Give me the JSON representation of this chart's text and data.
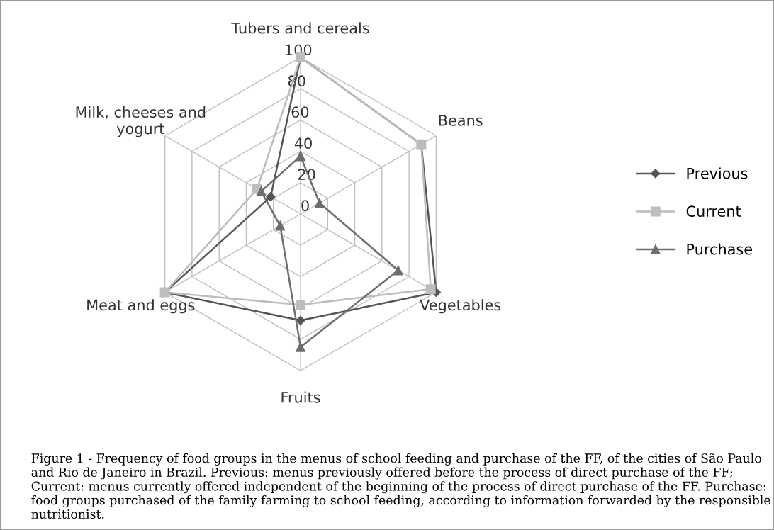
{
  "chart_data": {
    "type": "radar",
    "categories": [
      "Tubers and cereals",
      "Beans",
      "Vegetables",
      "Fruits",
      "Meat and eggs",
      "Milk, cheeses and\nyogurt"
    ],
    "series": [
      {
        "name": "Previous",
        "color": "#555555",
        "marker": "diamond",
        "values": [
          100,
          89,
          100,
          68,
          100,
          22
        ]
      },
      {
        "name": "Current",
        "color": "#bdbdbd",
        "marker": "square",
        "values": [
          100,
          89,
          96,
          58,
          100,
          32
        ]
      },
      {
        "name": "Purchase",
        "color": "#6e6e6e",
        "marker": "triangle",
        "values": [
          37,
          14,
          72,
          85,
          15,
          29
        ]
      }
    ],
    "ylim": [
      0,
      100
    ],
    "yticks": [
      0,
      20,
      40,
      60,
      80,
      100
    ],
    "grid": true,
    "legend": "right",
    "annotations": [
      "Figure 1 - Frequency of food groups in the menus of school feeding and purchase of the FF, of the cities of São Paulo and Rio de Janeiro in Brazil. Previous: menus previously offered before the process of direct purchase of the FF; Current: menus currently offered independent of the beginning of the process of direct purchase of the FF. Purchase: food groups purchased of the family farming to school feeding, according to information forwarded by the responsible nutritionist."
    ]
  }
}
